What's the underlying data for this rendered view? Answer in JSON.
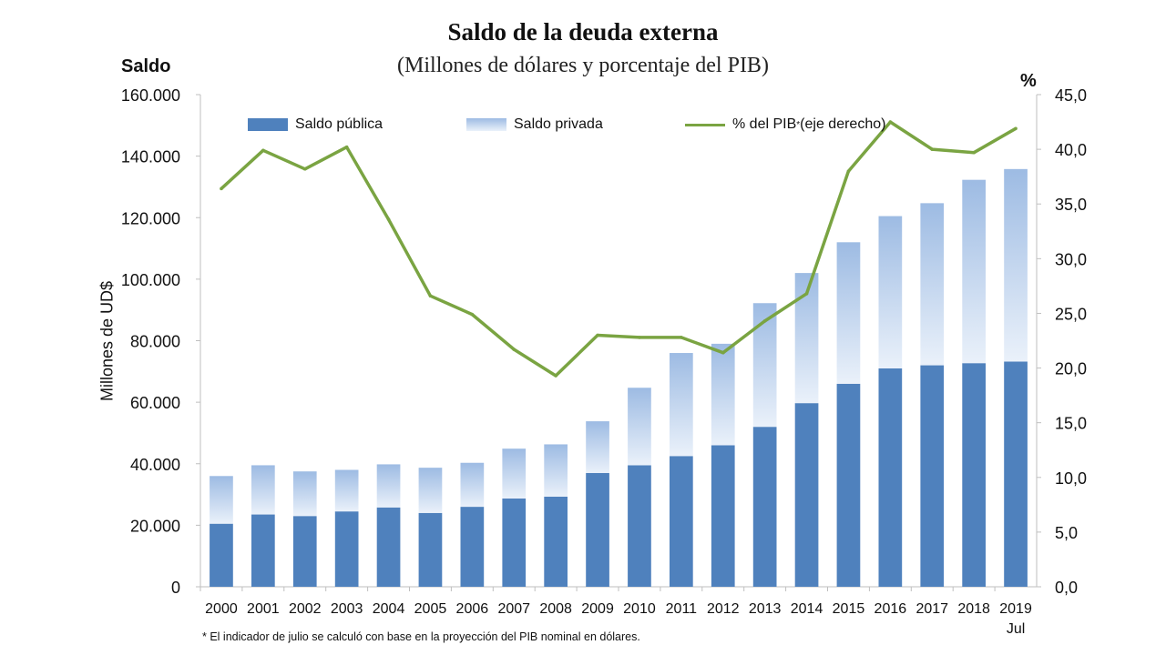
{
  "chart_data": {
    "type": "bar",
    "title": "Saldo de la deuda externa",
    "subtitle": "(Millones  de dólares y porcentaje del PIB)",
    "left_axis_heading": "Saldo",
    "right_axis_heading": "%",
    "ylabel": "Millones de UD$",
    "categories": [
      "2000",
      "2001",
      "2002",
      "2003",
      "2004",
      "2005",
      "2006",
      "2007",
      "2008",
      "2009",
      "2010",
      "2011",
      "2012",
      "2013",
      "2014",
      "2015",
      "2016",
      "2017",
      "2018",
      "2019"
    ],
    "category_sublabels": {
      "2019": "Jul"
    },
    "stacked": true,
    "series": [
      {
        "name": "Saldo pública",
        "type": "bar",
        "axis": "left",
        "values": [
          20500,
          23500,
          23000,
          24500,
          25800,
          24000,
          26000,
          28700,
          29300,
          37000,
          39500,
          42500,
          46000,
          52000,
          59700,
          66000,
          71000,
          72000,
          72700,
          73200
        ]
      },
      {
        "name": "Saldo privada",
        "type": "bar",
        "axis": "left",
        "values": [
          15500,
          16000,
          14500,
          13500,
          14000,
          14700,
          14300,
          16200,
          17000,
          16800,
          25200,
          33500,
          33000,
          40200,
          42300,
          46000,
          49500,
          52700,
          59600,
          62600
        ]
      },
      {
        "name": "% del PIB",
        "name_sup": "*",
        "name_suffix": " (eje derecho)",
        "type": "line",
        "axis": "right",
        "values": [
          36.4,
          39.9,
          38.2,
          40.2,
          33.6,
          26.6,
          24.9,
          21.7,
          19.3,
          23.0,
          22.8,
          22.8,
          21.4,
          24.3,
          26.8,
          38.0,
          42.5,
          40.0,
          39.7,
          41.9
        ]
      }
    ],
    "ylim_left": [
      0,
      160000
    ],
    "yticks_left": [
      0,
      20000,
      40000,
      60000,
      80000,
      100000,
      120000,
      140000,
      160000
    ],
    "yticklabels_left": [
      "0",
      "20.000",
      "40.000",
      "60.000",
      "80.000",
      "100.000",
      "120.000",
      "140.000",
      "160.000"
    ],
    "ylim_right": [
      0,
      45
    ],
    "yticks_right": [
      0,
      5,
      10,
      15,
      20,
      25,
      30,
      35,
      40,
      45
    ],
    "yticklabels_right": [
      "0,0",
      "5,0",
      "10,0",
      "15,0",
      "20,0",
      "25,0",
      "30,0",
      "35,0",
      "40,0",
      "45,0"
    ],
    "grid": false,
    "legend_position": "top",
    "colors": {
      "publica": "#4f81bd",
      "privada_top": "#9dbbe3",
      "privada_bottom": "#eaf1fa",
      "line": "#7aa442"
    },
    "footnote": "* El indicador de julio se calculó con base en la proyección del PIB nominal en dólares."
  }
}
